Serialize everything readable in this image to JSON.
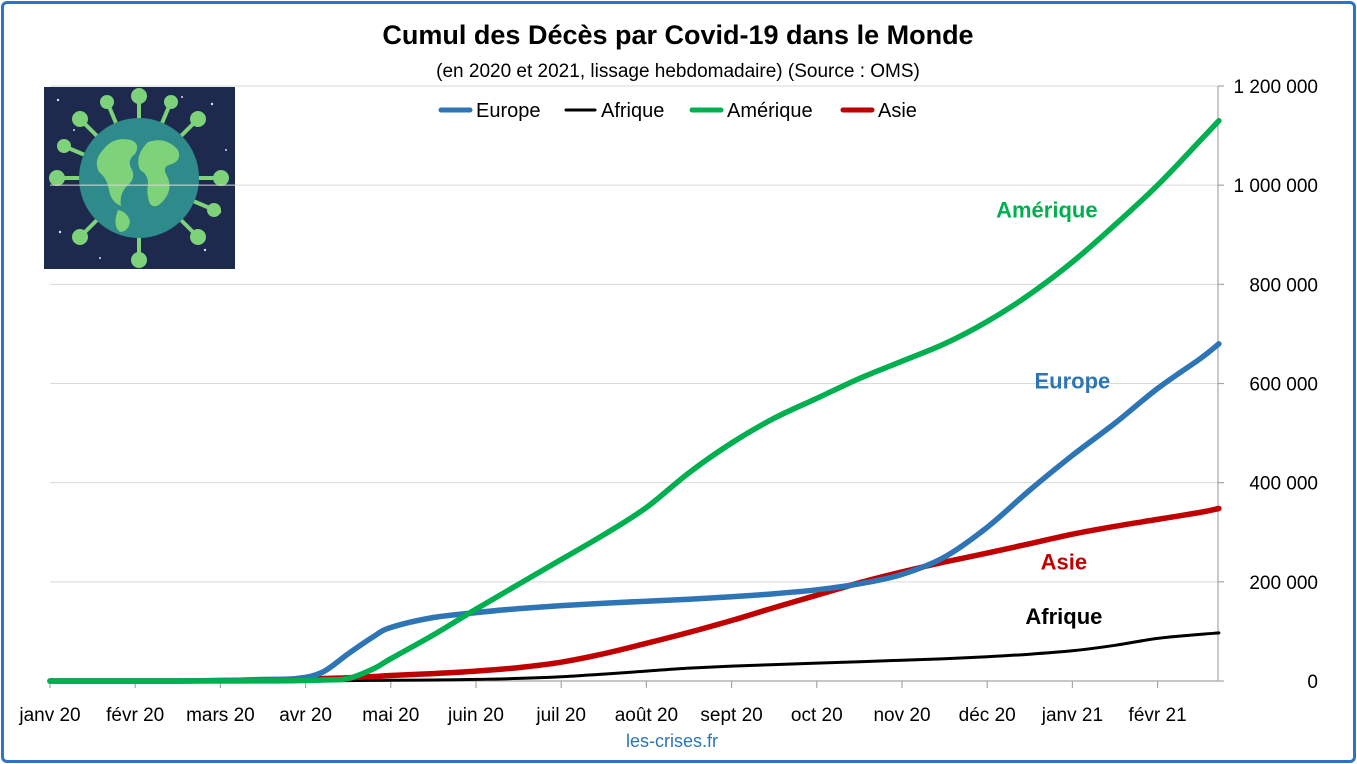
{
  "chart_data": {
    "type": "line",
    "title": "Cumul des Décès par Covid-19 dans le Monde",
    "subtitle": "(en 2020 et 2021, lissage hebdomadaire) (Source : OMS)",
    "source": "les-crises.fr",
    "x_tick_labels": [
      "janv 20",
      "févr 20",
      "mars 20",
      "avr 20",
      "mai 20",
      "juin 20",
      "juil 20",
      "août 20",
      "sept 20",
      "oct 20",
      "nov 20",
      "déc 20",
      "janv 21",
      "févr 21"
    ],
    "y_tick_labels": [
      "0",
      "200 000",
      "400 000",
      "600 000",
      "800 000",
      "1 000 000",
      "1 200 000"
    ],
    "ylim": [
      0,
      1200000
    ],
    "y_axis_side": "right",
    "grid": true,
    "legend_position": "top",
    "x_unit": "months since janv 20",
    "x": [
      0,
      0.5,
      1,
      1.5,
      2,
      2.5,
      2.9,
      3.2,
      3.5,
      3.8,
      4,
      4.5,
      5,
      5.5,
      6,
      6.5,
      7,
      7.5,
      8,
      8.5,
      9,
      9.5,
      10,
      10.5,
      11,
      11.5,
      12,
      12.5,
      13,
      13.5,
      13.72
    ],
    "series": [
      {
        "name": "Europe",
        "color": "#2e75b6",
        "label": "Europe",
        "values": [
          0,
          0,
          0,
          100,
          800,
          3000,
          5000,
          18000,
          55000,
          90000,
          108000,
          128000,
          138000,
          146000,
          152000,
          157000,
          161000,
          165000,
          170000,
          176000,
          184000,
          196000,
          215000,
          250000,
          310000,
          385000,
          455000,
          520000,
          590000,
          650000,
          680000
        ]
      },
      {
        "name": "Afrique",
        "color": "#000000",
        "label": "Afrique",
        "values": [
          0,
          0,
          0,
          0,
          0,
          100,
          300,
          600,
          900,
          1200,
          1500,
          2100,
          3300,
          5200,
          8500,
          14000,
          20000,
          26000,
          30000,
          33000,
          36000,
          39000,
          42000,
          45000,
          49000,
          54000,
          61000,
          72000,
          86000,
          94000,
          97000
        ]
      },
      {
        "name": "Amérique",
        "color": "#00b050",
        "label": "Amérique",
        "values": [
          0,
          0,
          0,
          0,
          0,
          200,
          800,
          2000,
          5000,
          25000,
          45000,
          93000,
          145000,
          195000,
          245000,
          295000,
          350000,
          420000,
          480000,
          530000,
          570000,
          610000,
          645000,
          680000,
          725000,
          780000,
          845000,
          920000,
          1000000,
          1090000,
          1130000
        ]
      },
      {
        "name": "Asie",
        "color": "#c00000",
        "label": "Asie",
        "values": [
          0,
          0,
          0,
          0,
          1000,
          2000,
          3500,
          5000,
          6500,
          9000,
          11000,
          15000,
          20000,
          27000,
          38000,
          55000,
          76000,
          98000,
          122000,
          148000,
          173000,
          198000,
          220000,
          240000,
          258000,
          277000,
          296000,
          312000,
          326000,
          340000,
          348000
        ]
      }
    ],
    "image_description_icon": "globe-virus-icon"
  }
}
